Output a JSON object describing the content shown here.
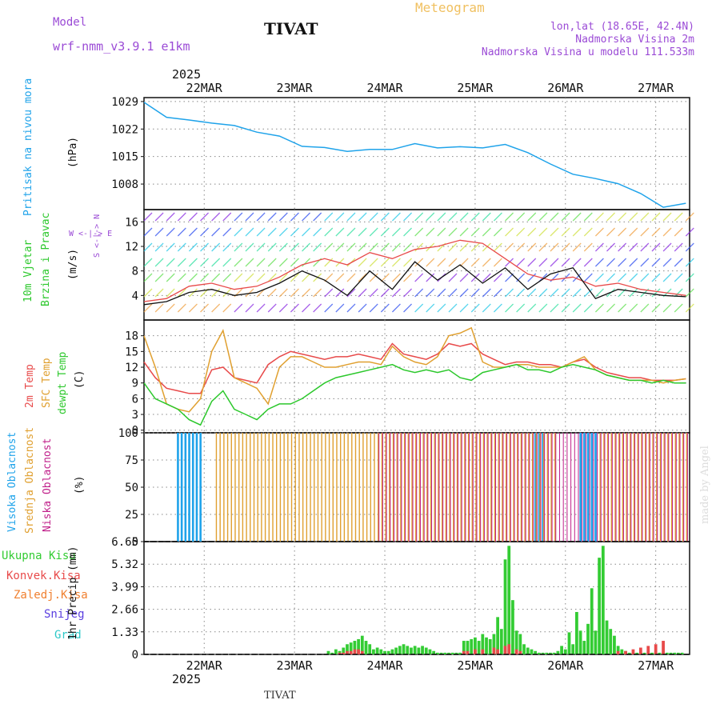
{
  "header": {
    "title": "TIVAT",
    "subtitle": "Meteogram",
    "model_label": "Model",
    "model_name": "wrf-nmm_v3.9.1 e1km",
    "location": "lon,lat (18.65E, 42.4N)",
    "elevation": "Nadmorska Visina 2m",
    "model_elevation": "Nadmorska Visina u modelu 111.533m",
    "year_top": "2025",
    "year_bottom": "2025",
    "footer_station": "TIVAT",
    "watermark": "made by Angel"
  },
  "panel_labels": {
    "pressure": {
      "name": "Pritisak na nivou mora",
      "unit": "(hPa)"
    },
    "wind": {
      "name1": "10m Vjetar",
      "name2": "Brzina i Pravac",
      "unit": "(m/s)",
      "compass": "W <-|-> E",
      "ns": "S <-|-> N"
    },
    "temp": {
      "name1": "2m Temp",
      "name2": "SFC Temp",
      "name3": "dewpt Temp",
      "unit": "(C)"
    },
    "cloud": {
      "name1": "Visoka Oblacnost",
      "name2": "Srednja Oblacnost",
      "name3": "Niska Oblacnost",
      "unit": "(%)"
    },
    "precip": {
      "items": [
        "Ukupna Kisa",
        "Konvek.Kisa",
        "Zaledj.Kisa",
        "Snijeg",
        "Grad"
      ],
      "unit": "1hr Precip (mm)"
    }
  },
  "colors": {
    "pressure": "#1fa3ea",
    "t2m": "#e84a4a",
    "tsfc": "#e0a030",
    "dewpt": "#2cc82c",
    "wind_speed": "#111111",
    "gust": "#e84a4a",
    "high_cloud": "#1fa3ea",
    "mid_cloud": "#e0a030",
    "low_cloud": "#c0208a",
    "rain_total": "#33cc33",
    "rain_conv": "#e84a4a",
    "rain_frz": "#f08030",
    "snow": "#5a3ee0",
    "hail": "#2ec8c8"
  },
  "chart_data": [
    {
      "type": "line",
      "ylabel": "(hPa)",
      "yticks": [
        1008,
        1015,
        1022,
        1029
      ],
      "ylim": [
        1001.5,
        1030
      ],
      "x_tick_labels": [
        "22MAR",
        "23MAR",
        "24MAR",
        "25MAR",
        "26MAR",
        "27MAR"
      ],
      "x_hours": [
        0,
        6,
        12,
        18,
        24,
        30,
        36,
        42,
        48,
        54,
        60,
        66,
        72,
        78,
        84,
        90,
        96,
        102,
        108,
        114,
        120,
        126,
        132,
        138,
        144
      ],
      "series": [
        {
          "values": [
            1028.8,
            1025.0,
            1024.3,
            1023.5,
            1022.9,
            1021.2,
            1020.2,
            1017.6,
            1017.3,
            1016.3,
            1016.8,
            1016.8,
            1018.3,
            1017.2,
            1017.5,
            1017.2,
            1018.1,
            1016.0,
            1013.1,
            1010.5,
            1009.4,
            1008.1,
            1005.6,
            1002.1,
            1003.1
          ]
        }
      ]
    },
    {
      "type": "line",
      "ylabel": "(m/s)",
      "yticks": [
        4,
        8,
        12,
        16
      ],
      "ylim": [
        0,
        18
      ],
      "x_hours": [
        0,
        6,
        12,
        18,
        24,
        30,
        36,
        42,
        48,
        54,
        60,
        66,
        72,
        78,
        84,
        90,
        96,
        102,
        108,
        114,
        120,
        126,
        132,
        138,
        144
      ],
      "series": [
        {
          "values": [
            2.5,
            3.0,
            4.5,
            5.0,
            4.0,
            4.5,
            6.0,
            8.0,
            6.5,
            4.0,
            8.0,
            5.0,
            9.5,
            6.5,
            9.0,
            6.0,
            8.5,
            5.0,
            7.5,
            8.5,
            3.5,
            5.0,
            4.5,
            4.0,
            3.8
          ]
        },
        {
          "values": [
            3.0,
            3.5,
            5.5,
            6.0,
            5.0,
            5.5,
            7.0,
            9.0,
            10.0,
            9.0,
            11.0,
            10.0,
            11.5,
            12.0,
            13.0,
            12.5,
            10.0,
            7.5,
            6.5,
            7.0,
            5.5,
            6.0,
            5.0,
            4.5,
            4.0
          ]
        }
      ]
    },
    {
      "type": "line",
      "ylabel": "(C)",
      "yticks": [
        0,
        3,
        6,
        9,
        12,
        15,
        18
      ],
      "ylim": [
        -0.5,
        21
      ],
      "x_hours": [
        0,
        3,
        6,
        9,
        12,
        15,
        18,
        21,
        24,
        27,
        30,
        33,
        36,
        39,
        42,
        45,
        48,
        51,
        54,
        57,
        60,
        63,
        66,
        69,
        72,
        75,
        78,
        81,
        84,
        87,
        90,
        93,
        96,
        99,
        102,
        105,
        108,
        111,
        114,
        117,
        120,
        123,
        126,
        129,
        132,
        135,
        138,
        141,
        144
      ],
      "series": [
        {
          "name": "2m Temp",
          "values": [
            13.0,
            10.0,
            8.0,
            7.5,
            7.0,
            7.0,
            11.5,
            12.0,
            10.0,
            9.5,
            9.0,
            12.5,
            14.0,
            15.0,
            14.5,
            14.0,
            13.5,
            14.0,
            14.0,
            14.5,
            14.0,
            13.5,
            16.5,
            14.5,
            14.0,
            13.5,
            14.5,
            16.5,
            16.0,
            16.5,
            14.5,
            13.5,
            12.5,
            13.0,
            13.0,
            12.5,
            12.5,
            12.0,
            13.0,
            13.5,
            12.0,
            11.0,
            10.5,
            10.0,
            10.0,
            9.5,
            9.5,
            9.5,
            9.8
          ]
        },
        {
          "name": "SFC Temp",
          "values": [
            18.0,
            12.0,
            5.0,
            4.0,
            3.5,
            6.0,
            15.0,
            19.0,
            10.0,
            9.0,
            8.0,
            5.0,
            12.0,
            14.0,
            14.0,
            13.0,
            12.0,
            12.0,
            12.5,
            13.0,
            13.0,
            12.5,
            16.0,
            14.0,
            13.0,
            12.5,
            14.0,
            18.0,
            18.5,
            19.5,
            13.0,
            12.0,
            12.0,
            12.5,
            12.5,
            12.0,
            12.0,
            12.0,
            13.0,
            14.0,
            11.5,
            10.5,
            10.0,
            9.5,
            9.5,
            9.5,
            9.0,
            9.5,
            9.8
          ]
        },
        {
          "name": "dewpt Temp",
          "values": [
            9.0,
            6.0,
            5.0,
            4.0,
            2.0,
            1.0,
            5.5,
            7.5,
            4.0,
            3.0,
            2.0,
            4.0,
            5.0,
            5.0,
            6.0,
            7.5,
            9.0,
            10.0,
            10.5,
            11.0,
            11.5,
            12.0,
            12.5,
            11.5,
            11.0,
            11.5,
            11.0,
            11.5,
            10.0,
            9.5,
            11.0,
            11.5,
            12.0,
            12.5,
            11.5,
            11.5,
            11.0,
            12.0,
            12.5,
            12.0,
            11.5,
            10.5,
            10.0,
            9.5,
            9.5,
            9.0,
            9.5,
            9.0,
            9.0
          ]
        }
      ]
    },
    {
      "type": "bar",
      "ylabel": "(%)",
      "yticks": [
        0,
        25,
        50,
        75,
        100
      ],
      "ylim": [
        0,
        100
      ],
      "hours": 145,
      "series": [
        {
          "name": "Visoka Oblacnost",
          "segments": [
            [
              9,
              16,
              100
            ],
            [
              104,
              107,
              100
            ],
            [
              116,
              121,
              100
            ]
          ]
        },
        {
          "name": "Srednja Oblacnost",
          "segments": [
            [
              19,
              90,
              100
            ],
            [
              90,
              110,
              100
            ],
            [
              121,
              145,
              100
            ]
          ]
        },
        {
          "name": "Niska Oblacnost",
          "segments": [
            [
              62,
              145,
              100
            ]
          ]
        }
      ]
    },
    {
      "type": "bar",
      "ylabel": "1hr Precip (mm)",
      "yticks": [
        0,
        1.33,
        2.66,
        3.99,
        5.32,
        6.65
      ],
      "ylim": [
        0,
        6.65
      ],
      "series": [
        {
          "name": "Ukupna Kisa",
          "hours": [
            49,
            50,
            51,
            52,
            53,
            54,
            55,
            56,
            57,
            58,
            59,
            60,
            61,
            62,
            63,
            64,
            65,
            66,
            67,
            68,
            69,
            70,
            71,
            72,
            73,
            74,
            75,
            76,
            77,
            78,
            79,
            80,
            81,
            82,
            83,
            84,
            85,
            86,
            87,
            88,
            89,
            90,
            91,
            92,
            93,
            94,
            95,
            96,
            97,
            98,
            99,
            100,
            101,
            102,
            103,
            104,
            105,
            106,
            107,
            108,
            109,
            110,
            111,
            112,
            113,
            114,
            115,
            116,
            117,
            118,
            119,
            120,
            121,
            122,
            123,
            124,
            125,
            126,
            127,
            128,
            129,
            130,
            131,
            132,
            133,
            134,
            135,
            136,
            137,
            138,
            139,
            140,
            141,
            142,
            143
          ],
          "values": [
            0.2,
            0.1,
            0.3,
            0.2,
            0.4,
            0.6,
            0.7,
            0.8,
            0.9,
            1.1,
            0.8,
            0.6,
            0.3,
            0.4,
            0.3,
            0.2,
            0.2,
            0.3,
            0.4,
            0.5,
            0.6,
            0.5,
            0.4,
            0.5,
            0.4,
            0.5,
            0.4,
            0.3,
            0.2,
            0.1,
            0.1,
            0.1,
            0.1,
            0.1,
            0.1,
            0.1,
            0.8,
            0.8,
            0.9,
            1.0,
            0.8,
            1.2,
            1.0,
            0.9,
            1.2,
            2.2,
            1.5,
            5.6,
            6.4,
            3.2,
            1.4,
            1.2,
            0.6,
            0.4,
            0.3,
            0.2,
            0.1,
            0.1,
            0.1,
            0.1,
            0.1,
            0.2,
            0.5,
            0.3,
            1.3,
            0.6,
            2.5,
            1.4,
            0.8,
            1.8,
            3.9,
            1.4,
            5.7,
            6.4,
            2.0,
            1.5,
            1.1,
            0.5,
            0.3,
            0.2,
            0.1,
            0.1,
            0.1,
            0.1,
            0.1,
            0.1,
            0.1,
            0.1,
            0.1,
            0.1,
            0.1,
            0.1,
            0.1,
            0.1,
            0.1
          ]
        },
        {
          "name": "Konvek.Kisa",
          "hours": [
            52,
            53,
            54,
            55,
            56,
            57,
            58,
            85,
            86,
            88,
            90,
            93,
            94,
            96,
            97,
            99,
            100,
            126,
            128,
            130,
            132,
            134,
            136,
            138
          ],
          "values": [
            0.1,
            0.1,
            0.2,
            0.2,
            0.3,
            0.3,
            0.2,
            0.2,
            0.2,
            0.3,
            0.3,
            0.4,
            0.3,
            0.5,
            0.6,
            0.3,
            0.2,
            0.2,
            0.2,
            0.3,
            0.4,
            0.5,
            0.6,
            0.8
          ]
        }
      ]
    }
  ]
}
